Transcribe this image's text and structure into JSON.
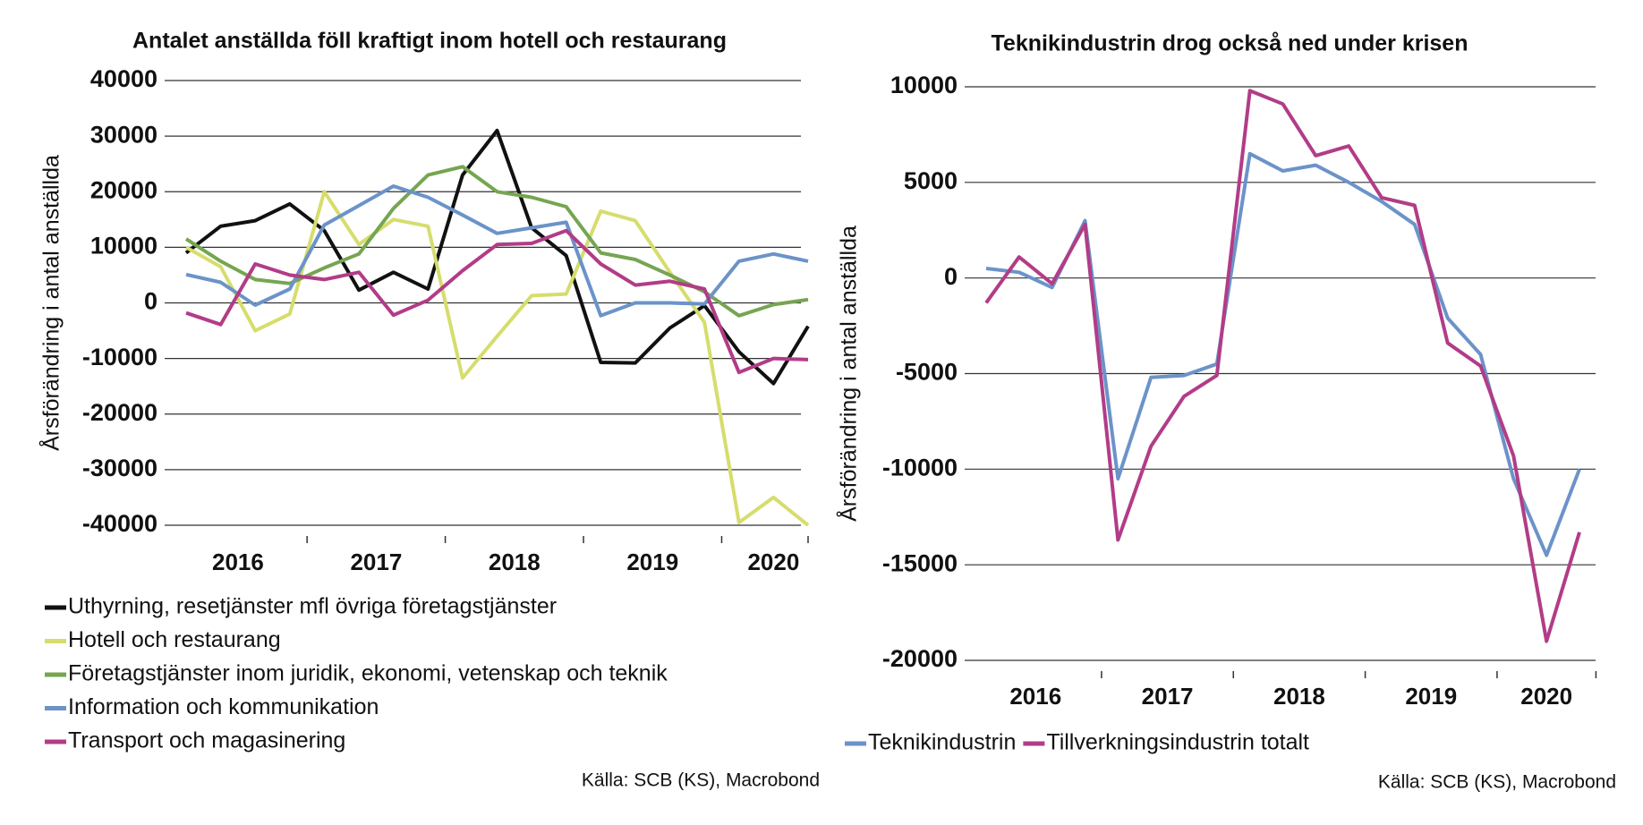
{
  "chart_data": [
    {
      "type": "line",
      "title": "Antalet anställda föll kraftigt inom hotell och restaurang",
      "y_label": "Årsförändring i antal anställda",
      "categories": [
        "2016",
        null,
        null,
        null,
        "2017",
        null,
        null,
        null,
        "2018",
        null,
        null,
        null,
        "2019",
        null,
        null,
        null,
        "2020",
        null,
        null
      ],
      "series": [
        {
          "name": "Uthyrning, resetjänster mfl övriga företagstjänster",
          "color": "#111111",
          "values": [
            9000,
            13800,
            14800,
            17800,
            13000,
            2300,
            5500,
            2500,
            23000,
            31000,
            13500,
            8500,
            -10700,
            -10800,
            -4500,
            -500,
            -8800,
            -14500,
            -4200
          ]
        },
        {
          "name": "Hotell och restaurang",
          "color": "#d6dd6c",
          "values": [
            10000,
            6500,
            -5000,
            -2000,
            20000,
            10500,
            15000,
            13800,
            -13500,
            -6000,
            1300,
            1600,
            16500,
            14800,
            5500,
            -3500,
            -39500,
            -35000,
            -40000
          ]
        },
        {
          "name": "Företagstjänster inom juridik, ekonomi, vetenskap och teknik",
          "color": "#76a552",
          "values": [
            11500,
            7500,
            4200,
            3500,
            6300,
            8800,
            17000,
            23000,
            24500,
            20000,
            19000,
            17300,
            9000,
            7800,
            5000,
            2000,
            -2300,
            -300,
            600
          ]
        },
        {
          "name": "Information och kommunikation",
          "color": "#6b93c9",
          "values": [
            5100,
            3700,
            -400,
            2500,
            14000,
            17500,
            21000,
            19000,
            15800,
            12500,
            13500,
            14500,
            -2300,
            0,
            0,
            -200,
            7500,
            8800,
            7500
          ]
        },
        {
          "name": "Transport och magasinering",
          "color": "#b23c87",
          "values": [
            -1800,
            -3900,
            7000,
            5000,
            4200,
            5500,
            -2200,
            500,
            5800,
            10500,
            10700,
            13000,
            7000,
            3200,
            3900,
            2500,
            -12500,
            -10000,
            -10200
          ]
        }
      ],
      "ylim": [
        -40000,
        40000
      ],
      "yticks": [
        -40000,
        -30000,
        -20000,
        -10000,
        0,
        10000,
        20000,
        30000,
        40000
      ],
      "grid": true,
      "legend": "bottom",
      "source": "Källa: SCB (KS), Macrobond"
    },
    {
      "type": "line",
      "title": "Teknikindustrin drog också ned under krisen",
      "y_label": "Årsförändring i antal anställda",
      "categories": [
        "2016",
        null,
        null,
        null,
        "2017",
        null,
        null,
        null,
        "2018",
        null,
        null,
        null,
        "2019",
        null,
        null,
        null,
        "2020",
        null,
        null
      ],
      "series": [
        {
          "name": "Teknikindustrin",
          "color": "#6b93c9",
          "values": [
            500,
            300,
            -500,
            3000,
            -10500,
            -5200,
            -5100,
            -4500,
            6500,
            5600,
            5900,
            5000,
            4000,
            2800,
            -2100,
            -4000,
            -10500,
            -14500,
            -10000
          ]
        },
        {
          "name": "Tillverkningsindustrin totalt",
          "color": "#b23c87",
          "values": [
            -1300,
            1100,
            -300,
            2800,
            -13700,
            -8800,
            -6200,
            -5100,
            9800,
            9100,
            6400,
            6900,
            4200,
            3800,
            -3400,
            -4600,
            -9300,
            -19000,
            -13300
          ]
        }
      ],
      "ylim": [
        -20000,
        10000
      ],
      "yticks": [
        -20000,
        -15000,
        -10000,
        -5000,
        0,
        5000,
        10000
      ],
      "grid": true,
      "legend": "bottom",
      "source": "Källa: SCB (KS), Macrobond"
    }
  ]
}
